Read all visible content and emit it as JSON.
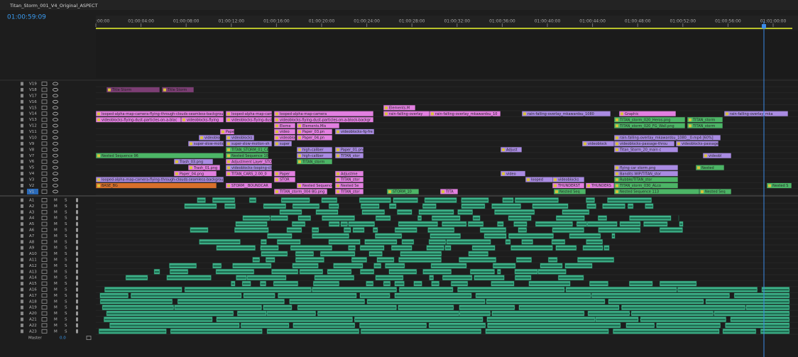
{
  "tab": {
    "title": "Titan_Storm_001_V4_Original_ASPECT"
  },
  "timecode": "01:00:59:09",
  "ruler": [
    ":00:00",
    "01:00:04:00",
    "01:00:08:00",
    "01:00:12:00",
    "01:00:16:00",
    "01:00:20:00",
    "01:00:24:00",
    "01:00:28:00",
    "01:00:32:00",
    "01:00:36:00",
    "01:00:40:00",
    "01:00:44:00",
    "01:00:48:00",
    "01:00:52:00",
    "01:00:56:00",
    "01:01:00:00"
  ],
  "video_tracks": [
    {
      "name": "V19",
      "clips": []
    },
    {
      "name": "V18",
      "clips": [
        "Title Storm",
        "Title Storm"
      ]
    },
    {
      "name": "V17",
      "clips": []
    },
    {
      "name": "V16",
      "clips": []
    },
    {
      "name": "V15",
      "clips": [
        "Elements.M"
      ]
    },
    {
      "name": "V14",
      "clips": [
        "looped-alpha-map-camera-flying-through-clouds-seamless-backgrou",
        "looped-alpha-map-cam",
        "looped-alpha-map-camera",
        "rain-falling-overlay",
        "rain-falling-overlay_mkawardsu_10",
        "rain-falling-overlay_mkawardsu_1080",
        "Graphic",
        "rain-falling-overlay_mka"
      ]
    },
    {
      "name": "V13",
      "clips": [
        "videoblocks-flying-dust-particles-on-a-blac",
        "videoblocks-flying",
        "videoblocks-flying-dust",
        "videoblocks-flying-dust-particles-on-a-block-backgr",
        "TITAN_storm_020_Heros.png",
        "TITAN_storm"
      ]
    },
    {
      "name": "V12",
      "clips": [
        "Eleme",
        "Elements.Mis",
        "TITAN_storm_020_FG_Wall.png",
        "TITAN_storm"
      ]
    },
    {
      "name": "V11",
      "clips": [
        "Paper",
        "video",
        "Paper_03.pn",
        "videoblocks-fg-fre"
      ]
    },
    {
      "name": "V10",
      "clips": [
        "videoblocks",
        "videoblocks",
        "videoblocks-ro",
        "Paper_04.pn",
        "rain-falling-overlay_mkawardsu_1080__0-mp4 [60%]"
      ]
    },
    {
      "name": "V9",
      "clips": [
        "super-slow-motion-sh",
        "super-slow-motion-sh",
        "super",
        "videoblock",
        "videoblocks-passage-throu",
        "videoblocks-passage"
      ]
    },
    {
      "name": "V8",
      "clips": [
        "TITAN_STORM_01_CA",
        "high-caliber",
        "Paper_01.png",
        "Adjust",
        "Titan_Storm_20_main c"
      ]
    },
    {
      "name": "V7",
      "clips": [
        "Nested Sequence 96",
        "Nested Sequence 105",
        "high-caliber",
        "TITAN_stor",
        "videobl"
      ]
    },
    {
      "name": "V6",
      "clips": [
        "Trash_03.png",
        "Adjustment Layer_STO",
        "TITAN_storm"
      ]
    },
    {
      "name": "V5",
      "clips": [
        "Trash_01.png",
        "videoblocks-looping-cli",
        "flying car storm.png",
        "Nested"
      ]
    },
    {
      "name": "V4",
      "clips": [
        "Paper_04.png",
        "TITAN_CARS_2.00_0",
        "Paper",
        "Adjustme",
        "video",
        "Bandits WIP/TITAN_stor"
      ]
    },
    {
      "name": "V3",
      "clips": [
        "looped-alpha-map-camera-flying-through-clouds-seamless-backgrou",
        "STOR",
        "TITAN_stor",
        "looped",
        "videoblocks",
        "Rubble/TITAN_stor"
      ]
    },
    {
      "name": "V2",
      "clips": [
        "BASE_BG",
        "STORM__BOUNDCAR",
        "Nested Sequence",
        "Nested Se",
        "THUNDERST",
        "THUNDERS",
        "TITAN_storm_030_ALco",
        "Nested S"
      ]
    },
    {
      "name": "V1",
      "clips": [
        "TITAN_storm_004 BG.png",
        "TITAN_stor",
        "STORM_10",
        "TITA",
        "Nested Seq",
        "Nested Sequence 113",
        "Nested Seq"
      ]
    }
  ],
  "audio_tracks": [
    "A1",
    "A2",
    "A3",
    "A4",
    "A5",
    "A6",
    "A7",
    "A8",
    "A9",
    "A10",
    "A11",
    "A12",
    "A13",
    "A14",
    "A15",
    "A16",
    "A17",
    "A18",
    "A19",
    "A20",
    "A21",
    "A22",
    "A23"
  ],
  "track_buttons": {
    "mute": "M",
    "solo": "S"
  },
  "master": {
    "name": "Master",
    "value": "0.0"
  }
}
